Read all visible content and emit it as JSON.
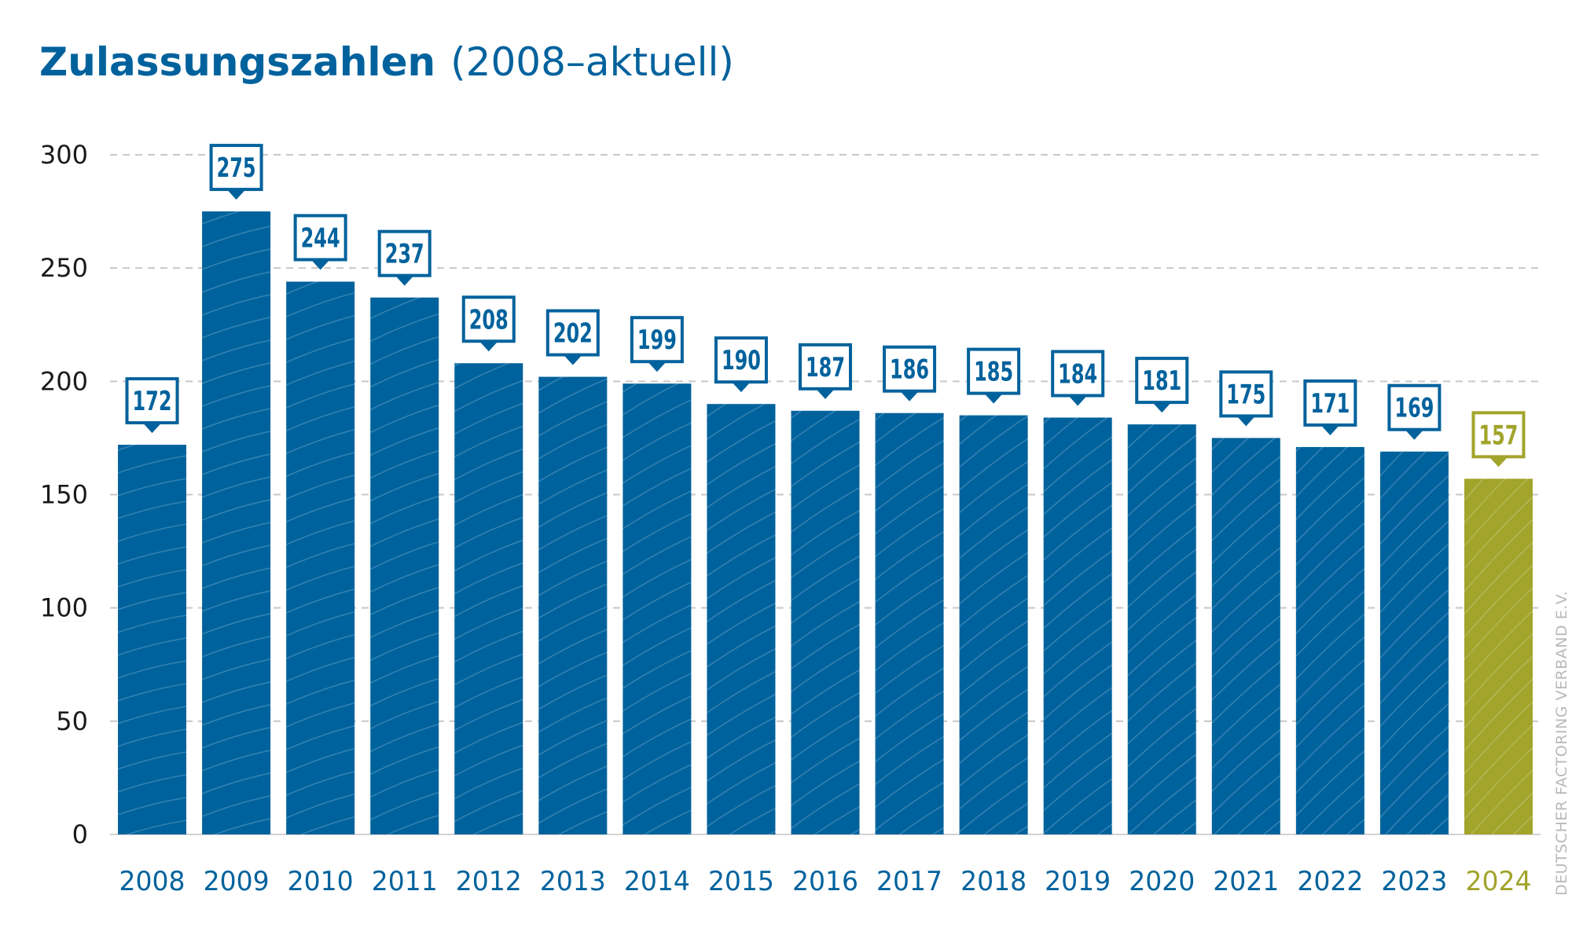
{
  "title": "Zulassungszahlen",
  "subtitle": "(2008–aktuell)",
  "credit": "DEUTSCHER FACTORING VERBAND E.V.",
  "colors": {
    "bar": "#00629d",
    "highlight": "#a2a42b",
    "title": "#00629d",
    "grid": "#c8c8c8"
  },
  "chart_data": {
    "type": "bar",
    "title": "Zulassungszahlen",
    "subtitle": "(2008–aktuell)",
    "xlabel": "",
    "ylabel": "",
    "categories": [
      "2008",
      "2009",
      "2010",
      "2011",
      "2012",
      "2013",
      "2014",
      "2015",
      "2016",
      "2017",
      "2018",
      "2019",
      "2020",
      "2021",
      "2022",
      "2023",
      "2024"
    ],
    "values": [
      172,
      275,
      244,
      237,
      208,
      202,
      199,
      190,
      187,
      186,
      185,
      184,
      181,
      175,
      171,
      169,
      157
    ],
    "highlight_category": "2024",
    "ylim": [
      0,
      300
    ],
    "yticks": [
      0,
      50,
      100,
      150,
      200,
      250,
      300
    ],
    "grid": true,
    "legend": "none",
    "data_labels": true
  }
}
